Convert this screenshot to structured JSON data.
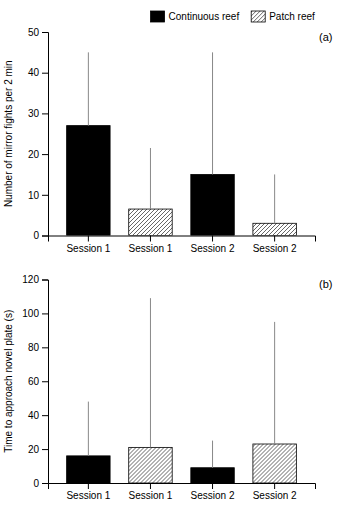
{
  "chart_data": [
    {
      "type": "bar",
      "title": "(a)",
      "ylabel": "Number of mirror fights per 2 min",
      "categories": [
        "Session 1",
        "Session 1",
        "Session 2",
        "Session 2"
      ],
      "series": [
        {
          "name": "Continuous reef",
          "color": "#000000",
          "values": [
            27,
            null,
            15,
            null
          ],
          "errors": [
            18,
            null,
            30,
            null
          ]
        },
        {
          "name": "Patch reef",
          "color": "#ffffff",
          "values": [
            null,
            6.5,
            null,
            3
          ],
          "errors": [
            null,
            15,
            null,
            12
          ]
        }
      ],
      "ylim": [
        0,
        50
      ],
      "yticks": [
        0,
        10,
        20,
        30,
        40,
        50
      ],
      "grid": false,
      "legend": "upper right"
    },
    {
      "type": "bar",
      "title": "(b)",
      "ylabel": "Time to approach novel plate (s)",
      "categories": [
        "Session 1",
        "Session 1",
        "Session 2",
        "Session 2"
      ],
      "series": [
        {
          "color": "#000000",
          "values": [
            16,
            null,
            9,
            null
          ],
          "errors": [
            32,
            null,
            16,
            null
          ]
        },
        {
          "color": "#ffffff",
          "values": [
            null,
            21,
            null,
            23
          ],
          "errors": [
            null,
            88,
            null,
            72
          ]
        }
      ],
      "ylim": [
        0,
        120
      ],
      "yticks": [
        0,
        20,
        40,
        60,
        80,
        100,
        120
      ],
      "grid": false
    }
  ]
}
